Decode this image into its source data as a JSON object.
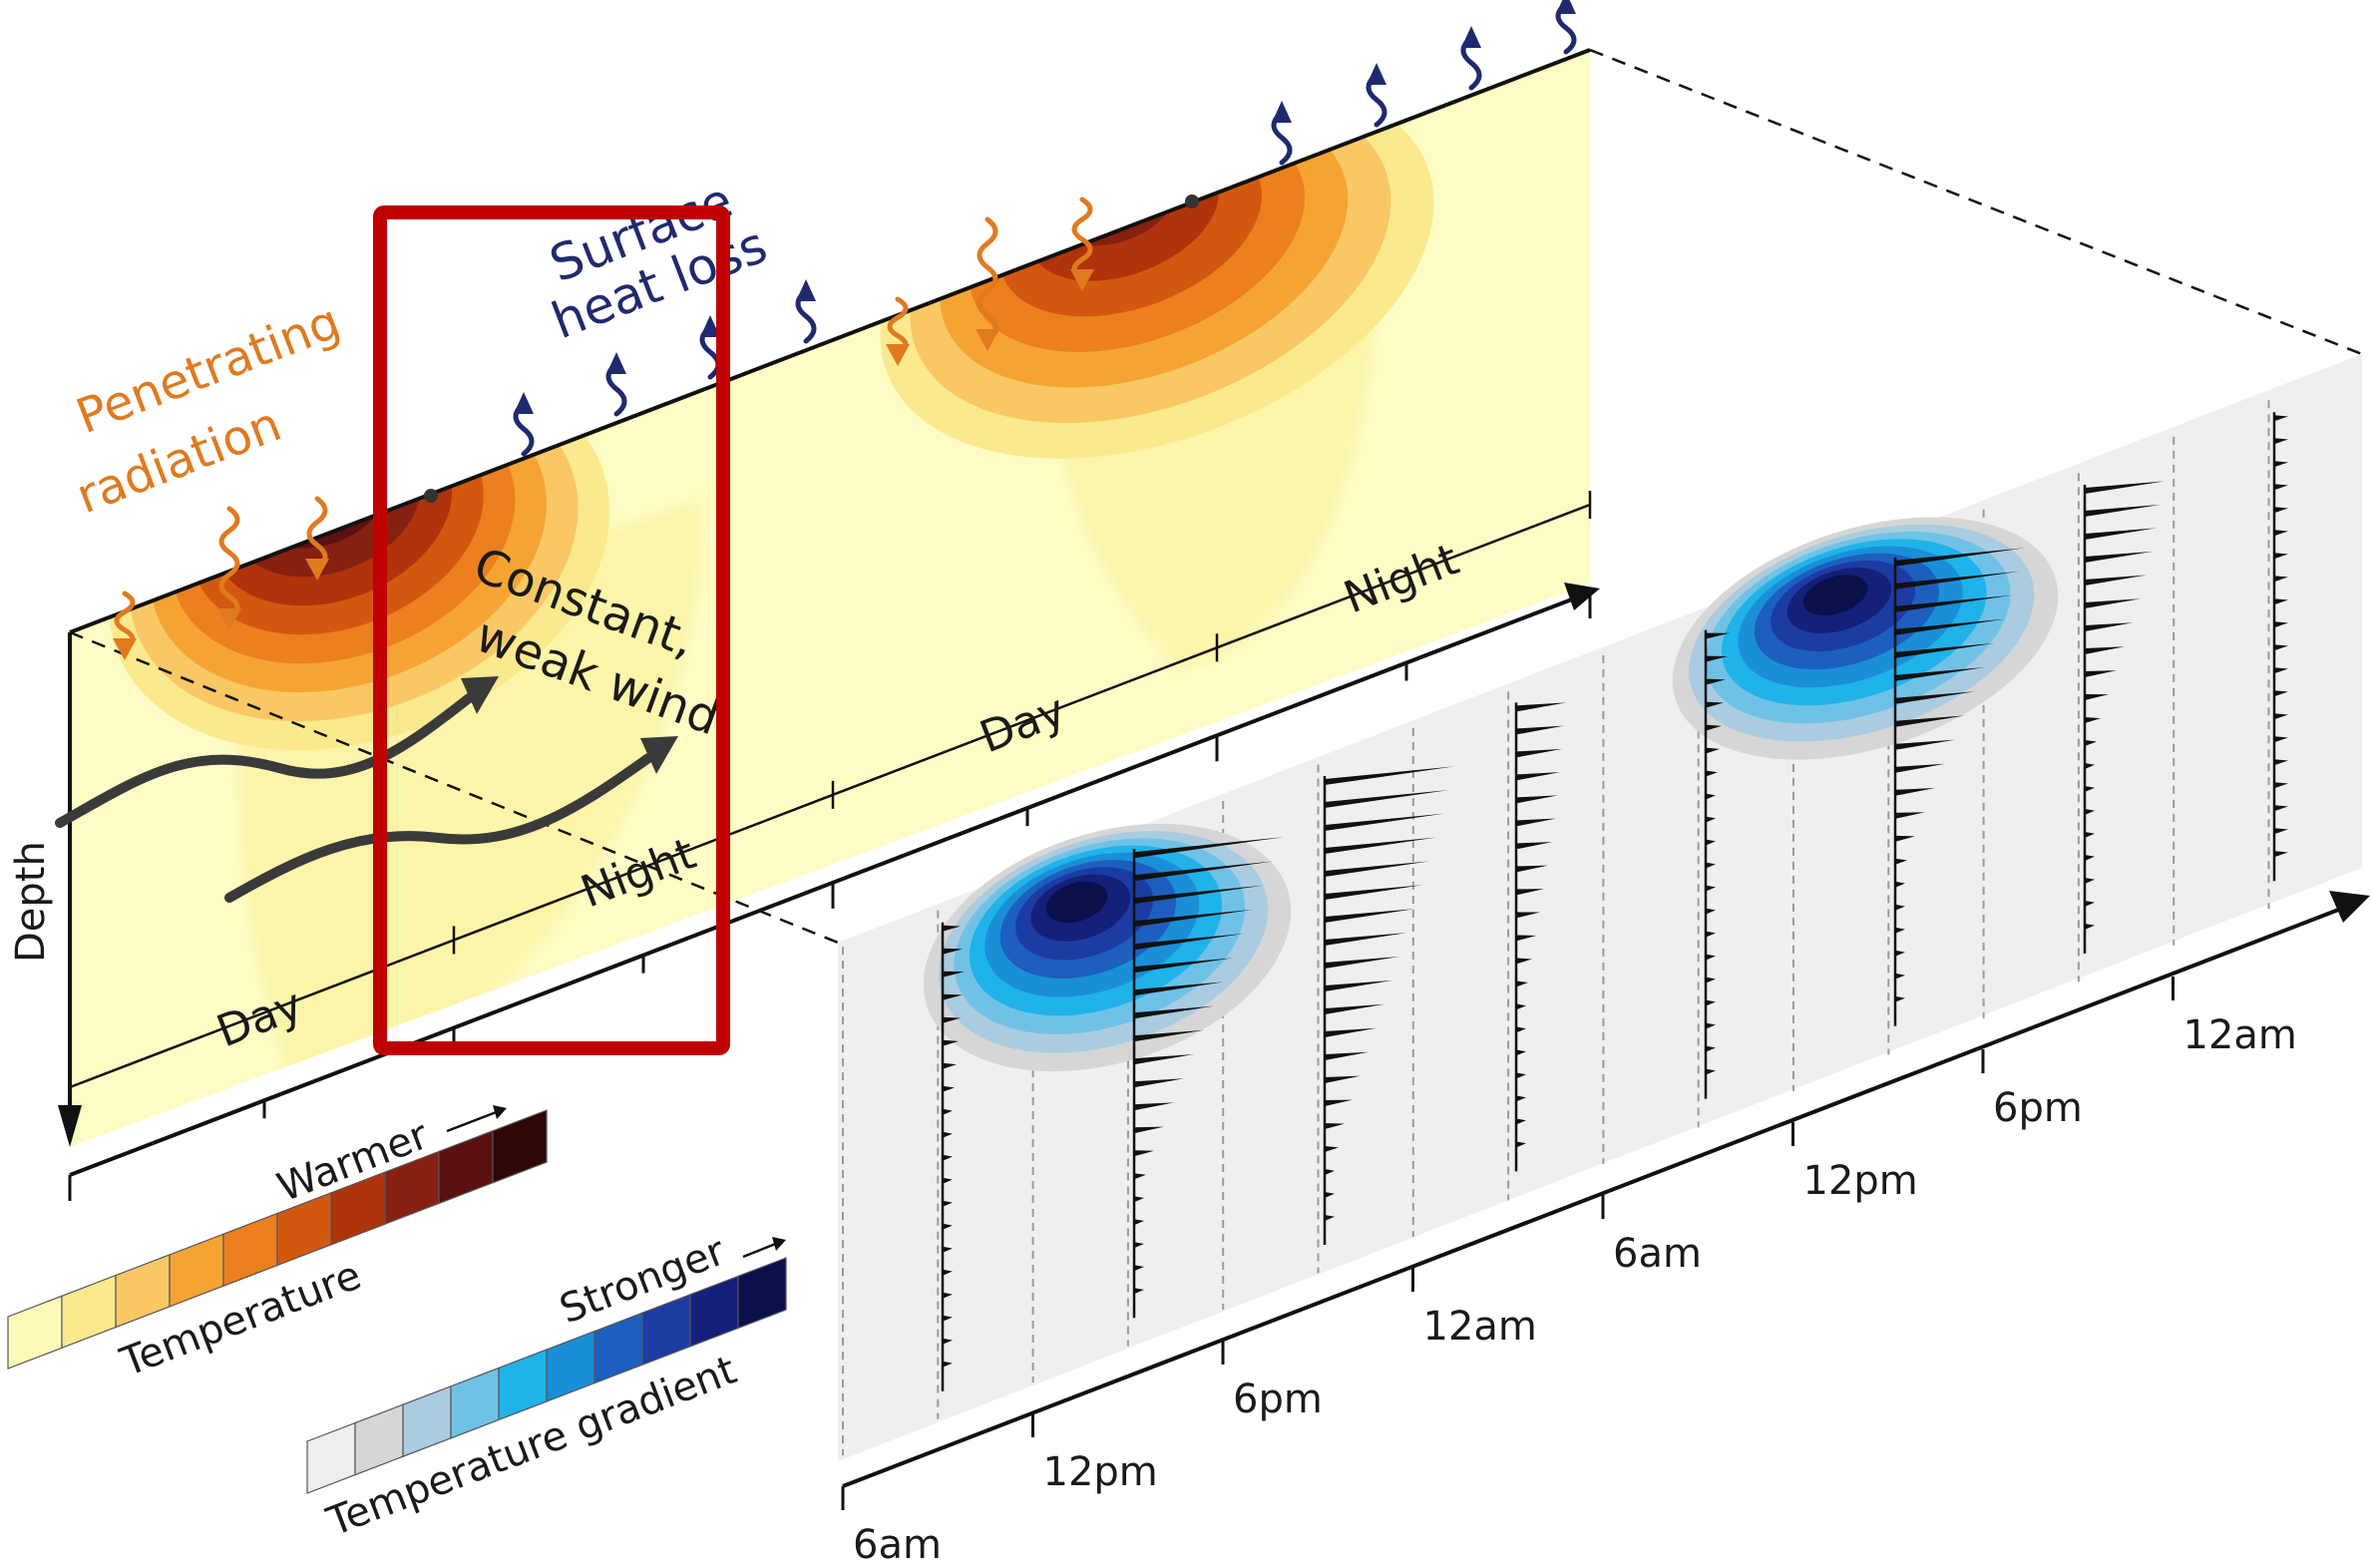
{
  "labels": {
    "penetrating_line1": "Penetrating",
    "penetrating_line2": "radiation",
    "surface_line1": "Surface",
    "surface_line2": "heat loss",
    "wind_line1": "Constant,",
    "wind_line2": "weak wind",
    "depth": "Depth",
    "day_1": "Day",
    "night_1": "Night",
    "day_2": "Day",
    "night_2": "Night"
  },
  "time_axis": {
    "ticks": [
      "6am",
      "12pm",
      "6pm",
      "12am",
      "6am",
      "12pm",
      "6pm",
      "12am"
    ]
  },
  "legend_temperature": {
    "title": "Temperature",
    "arrow_label": "Warmer",
    "colors": [
      "#fdfab8",
      "#fbe98e",
      "#f9c865",
      "#f5a434",
      "#ec7f1e",
      "#d3580f",
      "#b0330c",
      "#862011",
      "#5c1010",
      "#300707"
    ]
  },
  "legend_gradient": {
    "title": "Temperature gradient",
    "arrow_label": "Stronger",
    "colors": [
      "#eeeeee",
      "#d6d6d6",
      "#a9cce0",
      "#6fc2e6",
      "#1fb3ea",
      "#1a8fd8",
      "#1c5fbf",
      "#1c3ca3",
      "#14207a",
      "#0b0f4a"
    ]
  },
  "highlight": {
    "color": "#c00000"
  },
  "colors": {
    "orange": "#e07a1f",
    "navy": "#1f2a6e",
    "panel_back": "#fdfcc4",
    "panel_front": "#efefef"
  }
}
